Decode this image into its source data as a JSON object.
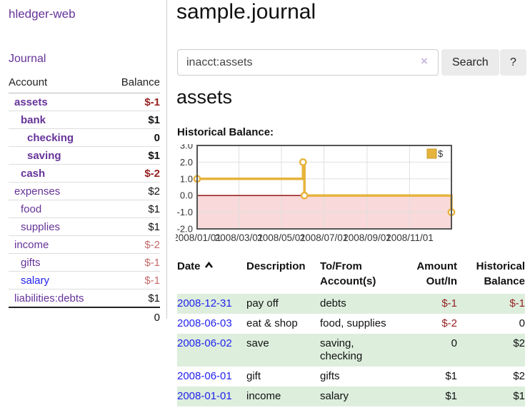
{
  "sidebar": {
    "brand": "hledger-web",
    "journal_link": "Journal",
    "table": {
      "account_header": "Account",
      "balance_header": "Balance",
      "rows": [
        {
          "name": "assets",
          "balance": "$-1",
          "indent": 1,
          "bold": true,
          "neg": "strong",
          "link": "purple"
        },
        {
          "name": "bank",
          "balance": "$1",
          "indent": 2,
          "bold": true,
          "neg": "",
          "link": "purple"
        },
        {
          "name": "checking",
          "balance": "0",
          "indent": 3,
          "bold": true,
          "neg": "",
          "link": "purple"
        },
        {
          "name": "saving",
          "balance": "$1",
          "indent": 3,
          "bold": true,
          "neg": "",
          "link": "purple"
        },
        {
          "name": "cash",
          "balance": "$-2",
          "indent": 2,
          "bold": true,
          "neg": "strong",
          "link": "purple"
        },
        {
          "name": "expenses",
          "balance": "$2",
          "indent": 1,
          "bold": false,
          "neg": "",
          "link": "purple"
        },
        {
          "name": "food",
          "balance": "$1",
          "indent": 2,
          "bold": false,
          "neg": "",
          "link": "purple"
        },
        {
          "name": "supplies",
          "balance": "$1",
          "indent": 2,
          "bold": false,
          "neg": "",
          "link": "purple"
        },
        {
          "name": "income",
          "balance": "$-2",
          "indent": 1,
          "bold": false,
          "neg": "soft",
          "link": "purple"
        },
        {
          "name": "gifts",
          "balance": "$-1",
          "indent": 2,
          "bold": false,
          "neg": "soft",
          "link": "purple"
        },
        {
          "name": "salary",
          "balance": "$-1",
          "indent": 2,
          "bold": false,
          "neg": "soft",
          "link": "blue"
        },
        {
          "name": "liabilities:debts",
          "balance": "$1",
          "indent": 1,
          "bold": false,
          "neg": "",
          "link": "purple"
        }
      ],
      "total": "0"
    }
  },
  "main": {
    "title": "sample.journal",
    "search": {
      "value": "inacct:assets",
      "clear_icon": "×",
      "button": "Search",
      "help_button": "?"
    },
    "account_heading": "assets",
    "chart_heading": "Historical Balance:"
  },
  "chart_data": {
    "type": "line",
    "title": "Historical Balance:",
    "series": [
      {
        "name": "$",
        "step": true,
        "markers": true,
        "color": "#e6b33d",
        "points": [
          [
            "2008-01-01",
            1
          ],
          [
            "2008-06-01",
            2
          ],
          [
            "2008-06-03",
            0
          ],
          [
            "2008-12-31",
            -1
          ]
        ]
      }
    ],
    "x_ticks": [
      "2008/01/01",
      "2008/03/01",
      "2008/05/01",
      "2008/07/01",
      "2008/09/01",
      "2008/11/01"
    ],
    "y_ticks": [
      "3.0",
      "2.0",
      "1.0",
      "0.0",
      "-1.0",
      "-2.0"
    ],
    "xlim": [
      "2008-01-01",
      "2008-12-31"
    ],
    "ylim": [
      -2,
      3
    ],
    "grid": true,
    "legend": {
      "label": "$",
      "position": "top-right"
    },
    "negative_region_fill": "#f9d9d9",
    "zero_line_color": "#8b0000",
    "border_color": "#545454"
  },
  "register": {
    "headers": [
      {
        "lines": [
          "Date"
        ],
        "sort": true,
        "align": "left"
      },
      {
        "lines": [
          "Description"
        ],
        "align": "left"
      },
      {
        "lines": [
          "To/From",
          "Account(s)"
        ],
        "align": "left"
      },
      {
        "lines": [
          "Amount",
          "Out/In"
        ],
        "align": "right"
      },
      {
        "lines": [
          "Historical",
          "Balance"
        ],
        "align": "right"
      }
    ],
    "rows": [
      {
        "date": "2008-12-31",
        "description": "pay off",
        "accounts": [
          "debts"
        ],
        "amount": "$-1",
        "amount_neg": true,
        "balance": "$-1",
        "balance_neg": true
      },
      {
        "date": "2008-06-03",
        "description": "eat & shop",
        "accounts": [
          "food, supplies"
        ],
        "amount": "$-2",
        "amount_neg": true,
        "balance": "0",
        "balance_neg": false
      },
      {
        "date": "2008-06-02",
        "description": "save",
        "accounts": [
          "saving,",
          "checking"
        ],
        "amount": "0",
        "amount_neg": false,
        "balance": "$2",
        "balance_neg": false
      },
      {
        "date": "2008-06-01",
        "description": "gift",
        "accounts": [
          "gifts"
        ],
        "amount": "$1",
        "amount_neg": false,
        "balance": "$2",
        "balance_neg": false
      },
      {
        "date": "2008-01-01",
        "description": "income",
        "accounts": [
          "salary"
        ],
        "amount": "$1",
        "amount_neg": false,
        "balance": "$1",
        "balance_neg": false
      }
    ]
  },
  "colors": {
    "link_purple": "#663399",
    "link_blue": "#2222ee",
    "negative_strong": "#941f1f",
    "negative_soft": "#c46a6a",
    "row_stripe_green": "#ddeedd",
    "chart_gold": "#e6b33d",
    "chart_negative_fill": "#f9d9d9",
    "chart_zero_line": "#8b0000"
  }
}
